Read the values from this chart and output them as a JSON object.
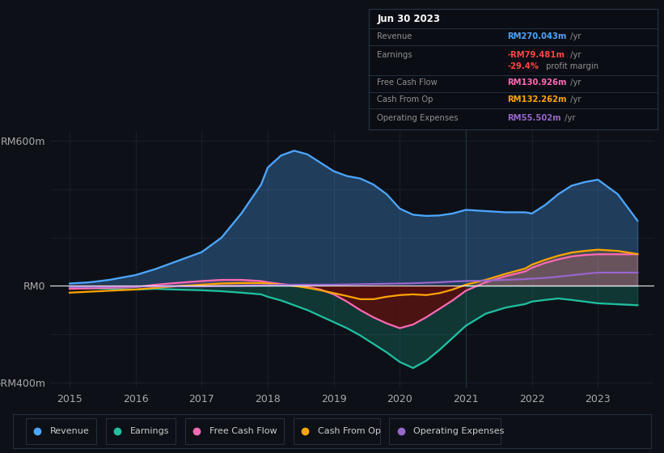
{
  "bg_color": "#0d1117",
  "grid_color": "#1e2535",
  "title_date": "Jun 30 2023",
  "tooltip_rows": [
    {
      "label": "Revenue",
      "value": "RM270.043m",
      "suffix": " /yr",
      "color": "#4da6ff",
      "is_sub": false
    },
    {
      "label": "Earnings",
      "value": "-RM79.481m",
      "suffix": " /yr",
      "color": "#ff4444",
      "is_sub": false
    },
    {
      "label": "",
      "value": "-29.4%",
      "suffix": " profit margin",
      "color": "#ff4444",
      "is_sub": true
    },
    {
      "label": "Free Cash Flow",
      "value": "RM130.926m",
      "suffix": " /yr",
      "color": "#ff69b4",
      "is_sub": false
    },
    {
      "label": "Cash From Op",
      "value": "RM132.262m",
      "suffix": " /yr",
      "color": "#ffa500",
      "is_sub": false
    },
    {
      "label": "Operating Expenses",
      "value": "RM55.502m",
      "suffix": " /yr",
      "color": "#9966cc",
      "is_sub": false
    }
  ],
  "years": [
    2015.0,
    2015.3,
    2015.6,
    2016.0,
    2016.3,
    2016.6,
    2017.0,
    2017.3,
    2017.6,
    2017.9,
    2018.0,
    2018.2,
    2018.4,
    2018.6,
    2018.8,
    2019.0,
    2019.2,
    2019.4,
    2019.6,
    2019.8,
    2020.0,
    2020.2,
    2020.4,
    2020.6,
    2020.8,
    2021.0,
    2021.3,
    2021.6,
    2021.9,
    2022.0,
    2022.2,
    2022.4,
    2022.6,
    2022.8,
    2023.0,
    2023.3,
    2023.6
  ],
  "revenue": [
    10,
    15,
    25,
    45,
    70,
    100,
    140,
    200,
    300,
    420,
    490,
    540,
    560,
    545,
    510,
    475,
    455,
    445,
    420,
    380,
    320,
    295,
    290,
    292,
    300,
    315,
    310,
    305,
    305,
    300,
    335,
    380,
    415,
    430,
    440,
    380,
    270
  ],
  "earnings": [
    -8,
    -10,
    -12,
    -15,
    -12,
    -15,
    -18,
    -22,
    -28,
    -35,
    -45,
    -60,
    -80,
    -100,
    -125,
    -150,
    -175,
    -205,
    -240,
    -275,
    -315,
    -340,
    -310,
    -265,
    -215,
    -165,
    -115,
    -90,
    -75,
    -65,
    -58,
    -52,
    -58,
    -65,
    -72,
    -76,
    -80
  ],
  "fcf": [
    -12,
    -10,
    -8,
    -5,
    5,
    12,
    20,
    25,
    25,
    20,
    15,
    8,
    2,
    -5,
    -15,
    -35,
    -65,
    -100,
    -130,
    -155,
    -175,
    -160,
    -130,
    -95,
    -60,
    -20,
    15,
    40,
    60,
    75,
    95,
    110,
    122,
    128,
    131,
    131,
    131
  ],
  "cash_from_op": [
    -28,
    -24,
    -20,
    -15,
    -8,
    -2,
    5,
    10,
    12,
    12,
    10,
    5,
    0,
    -8,
    -18,
    -30,
    -42,
    -55,
    -55,
    -45,
    -38,
    -35,
    -38,
    -30,
    -15,
    5,
    25,
    50,
    72,
    88,
    108,
    125,
    138,
    145,
    150,
    145,
    132
  ],
  "op_expenses": [
    -5,
    -4,
    -3,
    -3,
    -2,
    -2,
    -2,
    -1,
    0,
    2,
    3,
    4,
    5,
    5,
    5,
    5,
    6,
    7,
    8,
    9,
    10,
    11,
    13,
    15,
    18,
    20,
    22,
    25,
    28,
    30,
    33,
    38,
    44,
    50,
    55,
    55,
    55
  ],
  "revenue_color": "#4da6ff",
  "earnings_color": "#20c0a0",
  "fcf_color": "#ff69b4",
  "cash_from_op_color": "#ffa500",
  "op_expenses_color": "#9966cc",
  "ylim": [
    -420,
    640
  ],
  "xlim": [
    2014.7,
    2023.85
  ],
  "ytick_vals": [
    -400,
    0,
    600
  ],
  "ytick_labels": [
    "-RM400m",
    "RM0",
    "RM600m"
  ],
  "xtick_vals": [
    2015,
    2016,
    2017,
    2018,
    2019,
    2020,
    2021,
    2022,
    2023
  ],
  "legend_items": [
    {
      "label": "Revenue",
      "color": "#4da6ff"
    },
    {
      "label": "Earnings",
      "color": "#20c0a0"
    },
    {
      "label": "Free Cash Flow",
      "color": "#ff69b4"
    },
    {
      "label": "Cash From Op",
      "color": "#ffa500"
    },
    {
      "label": "Operating Expenses",
      "color": "#9966cc"
    }
  ]
}
